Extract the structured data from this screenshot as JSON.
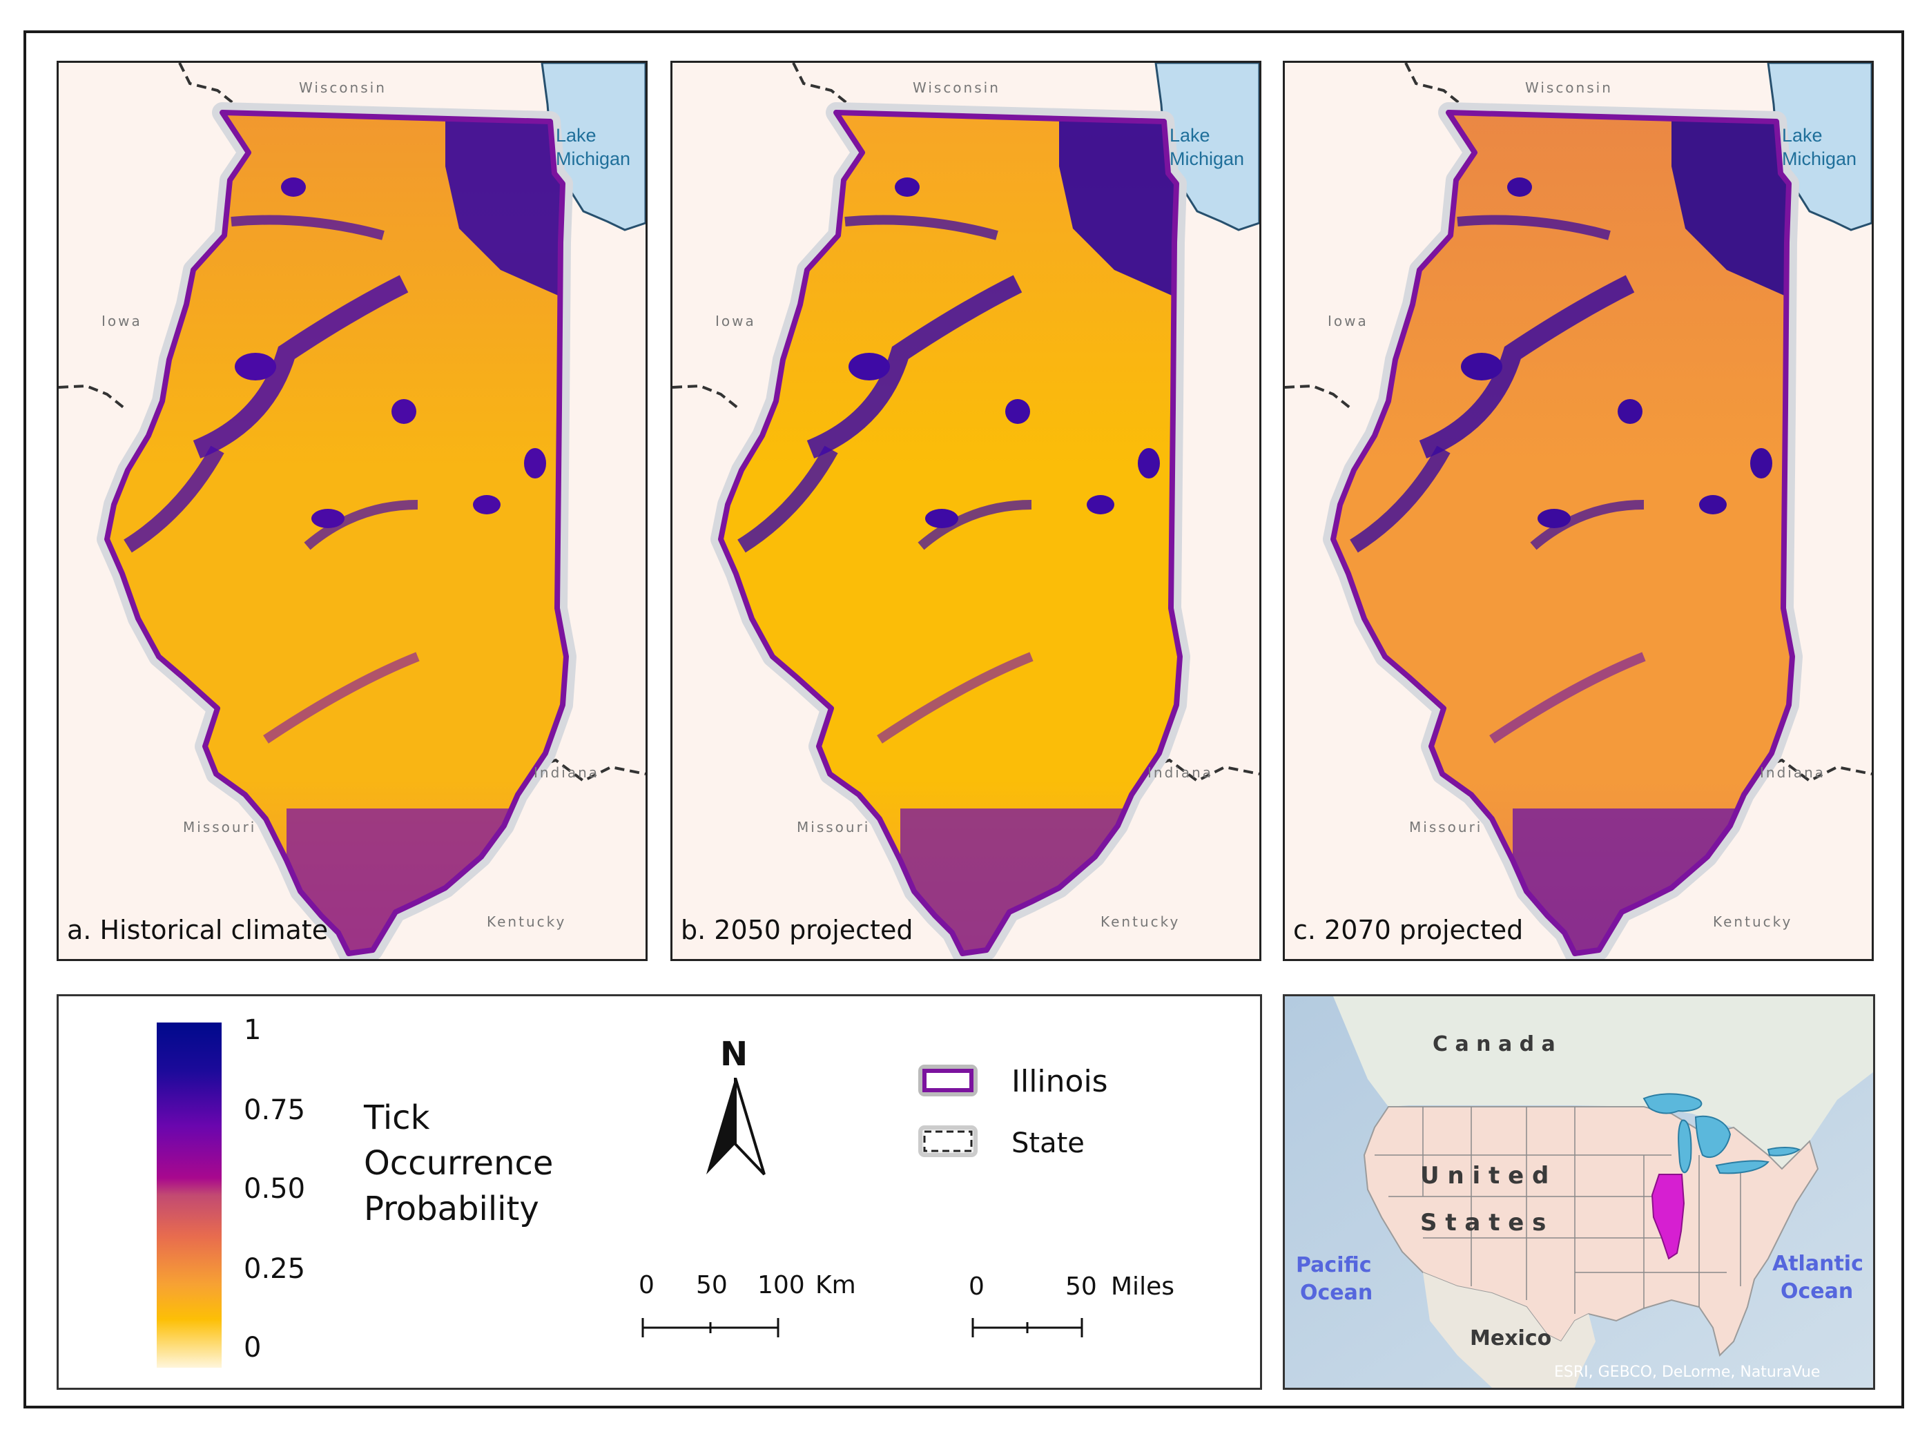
{
  "panels": [
    {
      "title": "a. Historical climate",
      "tone": "historical"
    },
    {
      "title": "b. 2050 projected",
      "tone": "y2050"
    },
    {
      "title": "c. 2070 projected",
      "tone": "y2070"
    }
  ],
  "map_labels": {
    "wisconsin": "Wisconsin",
    "iowa": "Iowa",
    "missouri": "Missouri",
    "indiana": "Indiana",
    "kentucky": "Kentucky",
    "lake_line1": "Lake",
    "lake_line2": "Michigan"
  },
  "legend": {
    "title_line1": "Tick",
    "title_line2": "Occurrence",
    "title_line3": "Probability",
    "ticks": [
      "1",
      "0.75",
      "0.50",
      "0.25",
      "0"
    ],
    "colorbar_stops": [
      "#000a8c",
      "#3e0aa5",
      "#8a04a8",
      "#b4107a",
      "#d4585e",
      "#f28b3c",
      "#fbbd08",
      "#fef0c4"
    ],
    "north": "N",
    "illinois_label": "Illinois",
    "illinois_color": "#7b139e",
    "state_label": "State",
    "km_scale": {
      "ticks": [
        "0",
        "50",
        "100"
      ],
      "unit": "Km"
    },
    "mi_scale": {
      "ticks": [
        "0",
        "50"
      ],
      "unit": "Miles"
    }
  },
  "inset": {
    "canada": "C a n a d a",
    "us_line1": "U n i t e d",
    "us_line2": "S t a t e s",
    "pacific_line1": "Pacific",
    "pacific_line2": "Ocean",
    "atlantic_line1": "Atlantic",
    "atlantic_line2": "Ocean",
    "mexico": "Mexico",
    "credit": "ESRI, GEBCO, DeLorme, NaturaVue",
    "highlight_color": "#d61fd1",
    "lake_color": "#5bb8dc"
  }
}
